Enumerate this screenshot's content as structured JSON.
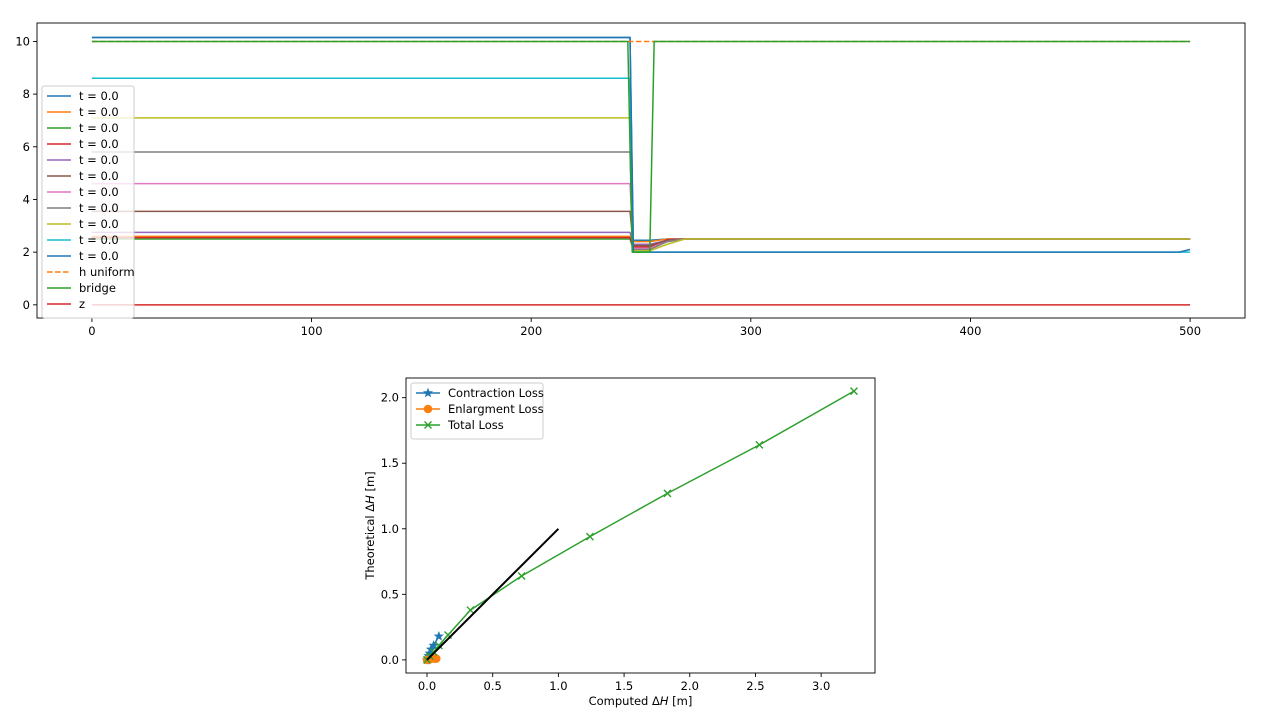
{
  "chart_data": [
    {
      "type": "line",
      "title": "",
      "xlabel": "",
      "ylabel": "",
      "xlim": [
        -25,
        525
      ],
      "ylim": [
        -0.5,
        10.7
      ],
      "xticks": [
        0,
        100,
        200,
        300,
        400,
        500
      ],
      "yticks": [
        0,
        2,
        4,
        6,
        8,
        10
      ],
      "grid": false,
      "legend_position": "center-left",
      "series": [
        {
          "name": "t = 0.0",
          "color": "#1f77b4",
          "style": "solid",
          "x": [
            0,
            245,
            246.5,
            254,
            262,
            270,
            500
          ],
          "y": [
            10.15,
            10.15,
            2.45,
            2.45,
            2.5,
            2.5,
            2.5
          ]
        },
        {
          "name": "t = 0.0",
          "color": "#ff7f0e",
          "style": "solid",
          "x": [
            0,
            245,
            246.5,
            254,
            262,
            270,
            500
          ],
          "y": [
            2.6,
            2.6,
            2.4,
            2.4,
            2.5,
            2.5,
            2.5
          ]
        },
        {
          "name": "t = 0.0",
          "color": "#2ca02c",
          "style": "solid",
          "x": [
            0,
            245,
            246.5,
            254,
            262,
            270,
            500
          ],
          "y": [
            2.5,
            2.5,
            2.1,
            2.1,
            2.45,
            2.5,
            2.5
          ]
        },
        {
          "name": "t = 0.0",
          "color": "#d62728",
          "style": "solid",
          "x": [
            0,
            245,
            246.5,
            254,
            262,
            270,
            500
          ],
          "y": [
            2.55,
            2.55,
            2.2,
            2.2,
            2.48,
            2.5,
            2.5
          ]
        },
        {
          "name": "t = 0.0",
          "color": "#9467bd",
          "style": "solid",
          "x": [
            0,
            245,
            246.5,
            254,
            262,
            270,
            500
          ],
          "y": [
            2.75,
            2.75,
            2.3,
            2.3,
            2.45,
            2.5,
            2.5
          ]
        },
        {
          "name": "t = 0.0",
          "color": "#8c564b",
          "style": "solid",
          "x": [
            0,
            245,
            246.5,
            254,
            262,
            270,
            500
          ],
          "y": [
            3.55,
            3.55,
            2.25,
            2.25,
            2.45,
            2.5,
            2.5
          ]
        },
        {
          "name": "t = 0.0",
          "color": "#e377c2",
          "style": "solid",
          "x": [
            0,
            245,
            246.5,
            254,
            262,
            270,
            500
          ],
          "y": [
            4.6,
            4.6,
            2.15,
            2.15,
            2.4,
            2.5,
            2.5
          ]
        },
        {
          "name": "t = 0.0",
          "color": "#7f7f7f",
          "style": "solid",
          "x": [
            0,
            245,
            246.5,
            254,
            262,
            270,
            500
          ],
          "y": [
            5.8,
            5.8,
            2.1,
            2.1,
            2.4,
            2.5,
            2.5
          ]
        },
        {
          "name": "t = 0.0",
          "color": "#bcbd22",
          "style": "solid",
          "x": [
            0,
            245,
            246.5,
            254,
            262,
            270,
            500
          ],
          "y": [
            7.1,
            7.1,
            2.05,
            2.05,
            2.3,
            2.5,
            2.5
          ]
        },
        {
          "name": "t = 0.0",
          "color": "#17becf",
          "style": "solid",
          "x": [
            0,
            245,
            246.5,
            254,
            262,
            270,
            500
          ],
          "y": [
            8.6,
            8.6,
            2.0,
            2.0,
            2.0,
            2.0,
            2.0
          ]
        },
        {
          "name": "t = 0.0",
          "color": "#1f77b4",
          "style": "solid",
          "x": [
            0,
            245,
            246.5,
            254,
            270,
            495,
            500
          ],
          "y": [
            10.15,
            10.15,
            2.0,
            2.0,
            2.0,
            2.0,
            2.1
          ]
        },
        {
          "name": "h uniform",
          "color": "#ff7f0e",
          "style": "dashed",
          "x": [
            0,
            500
          ],
          "y": [
            10,
            10
          ]
        },
        {
          "name": "bridge",
          "color": "#2ca02c",
          "style": "solid",
          "x": [
            0,
            244,
            246,
            254,
            256,
            500
          ],
          "y": [
            10,
            10,
            2,
            2,
            10,
            10
          ]
        },
        {
          "name": "z",
          "color": "#d62728",
          "style": "solid",
          "x": [
            0,
            500
          ],
          "y": [
            0,
            0
          ]
        }
      ]
    },
    {
      "type": "line",
      "title": "",
      "xlabel": "Computed ΔH [m]",
      "ylabel": "Theoretical ΔH [m]",
      "xlim": [
        -0.16,
        3.41
      ],
      "ylim": [
        -0.1,
        2.15
      ],
      "xticks": [
        0.0,
        0.5,
        1.0,
        1.5,
        2.0,
        2.5,
        3.0
      ],
      "yticks": [
        0.0,
        0.5,
        1.0,
        1.5,
        2.0
      ],
      "xtick_labels": [
        "0.0",
        "0.5",
        "1.0",
        "1.5",
        "2.0",
        "2.5",
        "3.0"
      ],
      "ytick_labels": [
        "0.0",
        "0.5",
        "1.0",
        "1.5",
        "2.0"
      ],
      "grid": false,
      "legend_position": "upper-left",
      "series": [
        {
          "name": "Contraction Loss",
          "color": "#1f77b4",
          "marker": "star",
          "x": [
            0.0,
            0.01,
            0.02,
            0.03,
            0.05,
            0.09
          ],
          "y": [
            0.0,
            0.03,
            0.05,
            0.08,
            0.11,
            0.18
          ]
        },
        {
          "name": "Enlargment Loss",
          "color": "#ff7f0e",
          "marker": "circle",
          "x": [
            0.0,
            0.01,
            0.02,
            0.04,
            0.06,
            0.07
          ],
          "y": [
            0.0,
            0.0,
            0.005,
            0.01,
            0.01,
            0.01
          ]
        },
        {
          "name": "Total Loss",
          "color": "#2ca02c",
          "marker": "x",
          "x": [
            0.0,
            0.02,
            0.05,
            0.09,
            0.16,
            0.33,
            0.72,
            1.24,
            1.83,
            2.53,
            3.25
          ],
          "y": [
            0.0,
            0.03,
            0.06,
            0.11,
            0.19,
            0.38,
            0.64,
            0.94,
            1.27,
            1.64,
            2.05
          ]
        },
        {
          "name": "",
          "color": "#000000",
          "marker": "none",
          "x": [
            0.0,
            1.0
          ],
          "y": [
            0.0,
            1.0
          ]
        }
      ]
    }
  ]
}
